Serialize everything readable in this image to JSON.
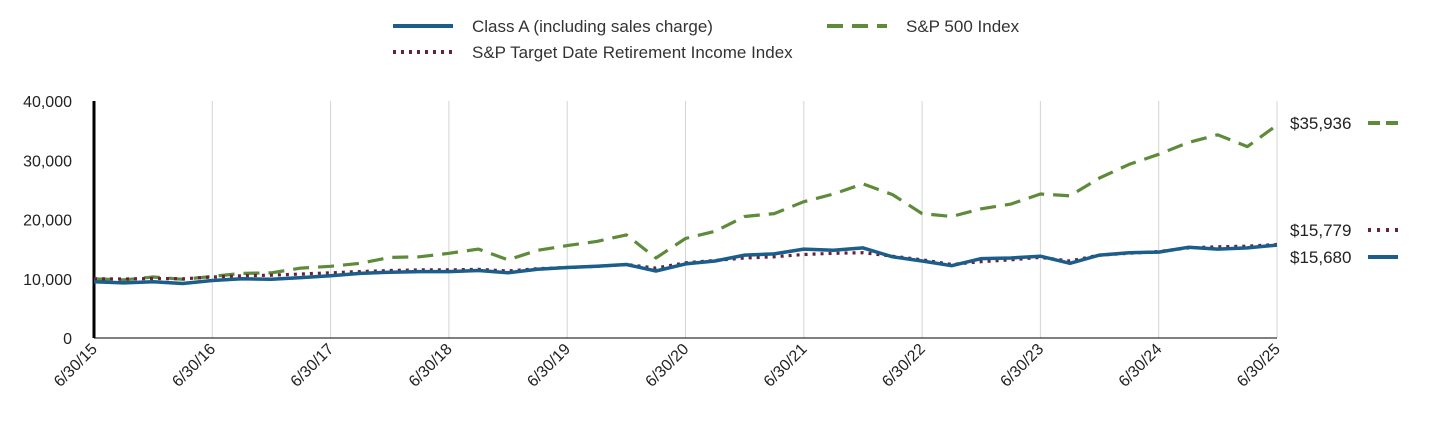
{
  "chart_data": {
    "type": "line",
    "title": "",
    "xlabel": "",
    "ylabel": "",
    "ylim": [
      0,
      40000
    ],
    "y_ticks": [
      "0",
      "10,000",
      "20,000",
      "30,000",
      "40,000"
    ],
    "y_tick_values": [
      0,
      10000,
      20000,
      30000,
      40000
    ],
    "x_ticks": [
      "6/30/15",
      "6/30/16",
      "6/30/17",
      "6/30/18",
      "6/30/19",
      "6/30/20",
      "6/30/21",
      "6/30/22",
      "6/30/23",
      "6/30/24",
      "6/30/25"
    ],
    "grid": "vertical",
    "legend_position": "top",
    "series": [
      {
        "name": "Class A (including sales charge)",
        "color": "#1b5e8c",
        "style": "solid",
        "end_label": "$15,680",
        "values": [
          [
            0,
            9500
          ],
          [
            0.25,
            9300
          ],
          [
            0.5,
            9500
          ],
          [
            0.75,
            9200
          ],
          [
            1,
            9700
          ],
          [
            1.25,
            10000
          ],
          [
            1.5,
            9900
          ],
          [
            1.75,
            10200
          ],
          [
            2,
            10500
          ],
          [
            2.25,
            10900
          ],
          [
            2.5,
            11100
          ],
          [
            2.75,
            11200
          ],
          [
            3,
            11200
          ],
          [
            3.25,
            11400
          ],
          [
            3.5,
            11000
          ],
          [
            3.75,
            11600
          ],
          [
            4,
            11900
          ],
          [
            4.25,
            12100
          ],
          [
            4.5,
            12400
          ],
          [
            4.75,
            11300
          ],
          [
            5,
            12500
          ],
          [
            5.25,
            13000
          ],
          [
            5.5,
            14000
          ],
          [
            5.75,
            14200
          ],
          [
            6,
            15000
          ],
          [
            6.25,
            14800
          ],
          [
            6.5,
            15200
          ],
          [
            6.75,
            13700
          ],
          [
            7,
            13000
          ],
          [
            7.25,
            12200
          ],
          [
            7.5,
            13400
          ],
          [
            7.75,
            13500
          ],
          [
            8,
            13800
          ],
          [
            8.25,
            12600
          ],
          [
            8.5,
            14000
          ],
          [
            8.75,
            14400
          ],
          [
            9,
            14500
          ],
          [
            9.25,
            15300
          ],
          [
            9.5,
            15000
          ],
          [
            9.75,
            15200
          ],
          [
            10,
            15680
          ]
        ]
      },
      {
        "name": "S&P 500 Index",
        "color": "#5e8b3a",
        "style": "dashed",
        "end_label": "$35,936",
        "values": [
          [
            0,
            10000
          ],
          [
            0.25,
            9800
          ],
          [
            0.5,
            10300
          ],
          [
            0.75,
            9900
          ],
          [
            1,
            10400
          ],
          [
            1.25,
            10900
          ],
          [
            1.5,
            11000
          ],
          [
            1.75,
            11800
          ],
          [
            2,
            12100
          ],
          [
            2.25,
            12600
          ],
          [
            2.5,
            13600
          ],
          [
            2.75,
            13700
          ],
          [
            3,
            14300
          ],
          [
            3.25,
            15000
          ],
          [
            3.5,
            13200
          ],
          [
            3.75,
            14800
          ],
          [
            4,
            15600
          ],
          [
            4.25,
            16300
          ],
          [
            4.5,
            17400
          ],
          [
            4.75,
            13500
          ],
          [
            5,
            16800
          ],
          [
            5.25,
            18000
          ],
          [
            5.5,
            20500
          ],
          [
            5.75,
            21000
          ],
          [
            6,
            23000
          ],
          [
            6.25,
            24300
          ],
          [
            6.5,
            26000
          ],
          [
            6.75,
            24200
          ],
          [
            7,
            21000
          ],
          [
            7.25,
            20500
          ],
          [
            7.5,
            21800
          ],
          [
            7.75,
            22600
          ],
          [
            8,
            24300
          ],
          [
            8.25,
            24000
          ],
          [
            8.5,
            27000
          ],
          [
            8.75,
            29300
          ],
          [
            9,
            31000
          ],
          [
            9.25,
            33000
          ],
          [
            9.5,
            34300
          ],
          [
            9.75,
            32300
          ],
          [
            10,
            35936
          ]
        ]
      },
      {
        "name": "S&P Target Date Retirement Income Index",
        "color": "#6b1f3f",
        "style": "dotted",
        "end_label": "$15,779",
        "values": [
          [
            0,
            10000
          ],
          [
            0.25,
            9950
          ],
          [
            0.5,
            10050
          ],
          [
            0.75,
            10000
          ],
          [
            1,
            10300
          ],
          [
            1.25,
            10500
          ],
          [
            1.5,
            10600
          ],
          [
            1.75,
            10800
          ],
          [
            2,
            11000
          ],
          [
            2.25,
            11200
          ],
          [
            2.5,
            11400
          ],
          [
            2.75,
            11500
          ],
          [
            3,
            11500
          ],
          [
            3.25,
            11600
          ],
          [
            3.5,
            11300
          ],
          [
            3.75,
            11700
          ],
          [
            4,
            11900
          ],
          [
            4.25,
            12100
          ],
          [
            4.5,
            12400
          ],
          [
            4.75,
            11800
          ],
          [
            5,
            12700
          ],
          [
            5.25,
            13100
          ],
          [
            5.5,
            13500
          ],
          [
            5.75,
            13700
          ],
          [
            6,
            14100
          ],
          [
            6.25,
            14300
          ],
          [
            6.5,
            14400
          ],
          [
            6.75,
            13800
          ],
          [
            7,
            13200
          ],
          [
            7.25,
            12400
          ],
          [
            7.5,
            12900
          ],
          [
            7.75,
            13200
          ],
          [
            8,
            13600
          ],
          [
            8.25,
            13000
          ],
          [
            8.5,
            14000
          ],
          [
            8.75,
            14300
          ],
          [
            9,
            14600
          ],
          [
            9.25,
            15200
          ],
          [
            9.5,
            15400
          ],
          [
            9.75,
            15500
          ],
          [
            10,
            15779
          ]
        ]
      }
    ]
  }
}
